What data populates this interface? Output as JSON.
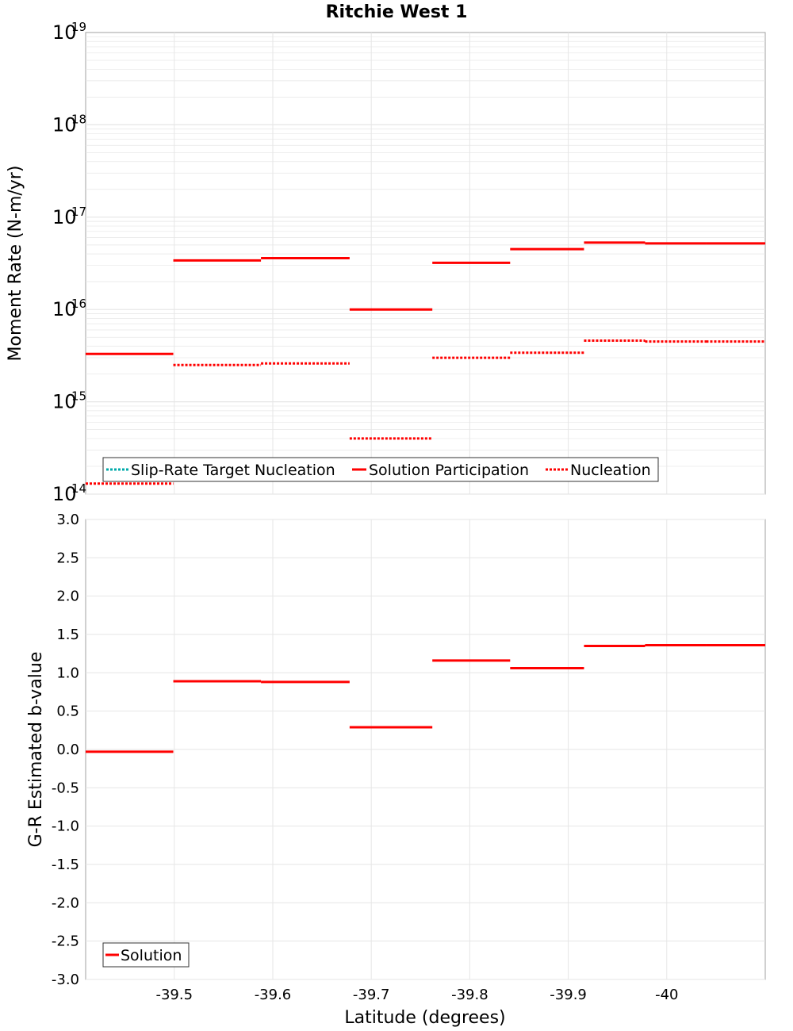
{
  "title": "Ritchie West 1",
  "colors": {
    "solution": "#ff0000",
    "target": "#00aaaa",
    "grid": "#e6e6e6",
    "frame": "#a0a0a0"
  },
  "chart_data": [
    {
      "type": "line",
      "panel": "top",
      "ylabel": "Moment Rate (N-m/yr)",
      "yscale": "log",
      "ylim": [
        100000000000000.0,
        1e+19
      ],
      "xlim": [
        -39.41,
        -40.1
      ],
      "y_ticks": [
        {
          "base": "10",
          "exp": "14",
          "value": 100000000000000.0
        },
        {
          "base": "10",
          "exp": "15",
          "value": 1000000000000000.0
        },
        {
          "base": "10",
          "exp": "16",
          "value": 1e+16
        },
        {
          "base": "10",
          "exp": "17",
          "value": 1e+17
        },
        {
          "base": "10",
          "exp": "18",
          "value": 1e+18
        },
        {
          "base": "10",
          "exp": "19",
          "value": 1e+19
        }
      ],
      "legend": {
        "placement": "bottom-left",
        "entries": [
          "Slip-Rate Target Nucleation",
          "Solution Participation",
          "Nucleation"
        ]
      },
      "series": [
        {
          "name": "Solution Participation",
          "style": "solid",
          "segments": [
            {
              "x": [
                -39.41,
                -39.499
              ],
              "y": 3300000000000000.0
            },
            {
              "x": [
                -39.499,
                -39.588
              ],
              "y": 3.4e+16
            },
            {
              "x": [
                -39.588,
                -39.678
              ],
              "y": 3.6e+16
            },
            {
              "x": [
                -39.678,
                -39.762
              ],
              "y": 1e+16
            },
            {
              "x": [
                -39.762,
                -39.841
              ],
              "y": 3.2e+16
            },
            {
              "x": [
                -39.841,
                -39.916
              ],
              "y": 4.5e+16
            },
            {
              "x": [
                -39.916,
                -39.978
              ],
              "y": 5.3e+16
            },
            {
              "x": [
                -39.978,
                -40.04
              ],
              "y": 5.2e+16
            },
            {
              "x": [
                -40.04,
                -40.1
              ],
              "y": 5.2e+16
            }
          ]
        },
        {
          "name": "Nucleation",
          "style": "dotted",
          "segments": [
            {
              "x": [
                -39.41,
                -39.499
              ],
              "y": 130000000000000.0
            },
            {
              "x": [
                -39.499,
                -39.588
              ],
              "y": 2500000000000000.0
            },
            {
              "x": [
                -39.588,
                -39.678
              ],
              "y": 2600000000000000.0
            },
            {
              "x": [
                -39.678,
                -39.762
              ],
              "y": 400000000000000.0
            },
            {
              "x": [
                -39.762,
                -39.841
              ],
              "y": 3000000000000000.0
            },
            {
              "x": [
                -39.841,
                -39.916
              ],
              "y": 3400000000000000.0
            },
            {
              "x": [
                -39.916,
                -39.978
              ],
              "y": 4600000000000000.0
            },
            {
              "x": [
                -39.978,
                -40.04
              ],
              "y": 4500000000000000.0
            },
            {
              "x": [
                -40.04,
                -40.1
              ],
              "y": 4500000000000000.0
            }
          ]
        }
      ]
    },
    {
      "type": "line",
      "panel": "bottom",
      "ylabel": "G-R Estimated b-value",
      "xlabel": "Latitude (degrees)",
      "ylim": [
        -3.0,
        3.0
      ],
      "xlim": [
        -39.41,
        -40.1
      ],
      "y_ticks": [
        "3.0",
        "2.5",
        "2.0",
        "1.5",
        "1.0",
        "0.5",
        "0.0",
        "-0.5",
        "-1.0",
        "-1.5",
        "-2.0",
        "-2.5",
        "-3.0"
      ],
      "x_ticks": [
        "-39.5",
        "-39.6",
        "-39.7",
        "-39.8",
        "-39.9",
        "-40"
      ],
      "legend": {
        "placement": "bottom-left",
        "entries": [
          "Solution"
        ]
      },
      "series": [
        {
          "name": "Solution",
          "style": "solid",
          "segments": [
            {
              "x": [
                -39.41,
                -39.499
              ],
              "y": -0.03
            },
            {
              "x": [
                -39.499,
                -39.588
              ],
              "y": 0.89
            },
            {
              "x": [
                -39.588,
                -39.678
              ],
              "y": 0.88
            },
            {
              "x": [
                -39.678,
                -39.762
              ],
              "y": 0.29
            },
            {
              "x": [
                -39.762,
                -39.841
              ],
              "y": 1.16
            },
            {
              "x": [
                -39.841,
                -39.916
              ],
              "y": 1.06
            },
            {
              "x": [
                -39.916,
                -39.978
              ],
              "y": 1.35
            },
            {
              "x": [
                -39.978,
                -40.04
              ],
              "y": 1.36
            },
            {
              "x": [
                -40.04,
                -40.1
              ],
              "y": 1.36
            }
          ]
        }
      ]
    }
  ]
}
